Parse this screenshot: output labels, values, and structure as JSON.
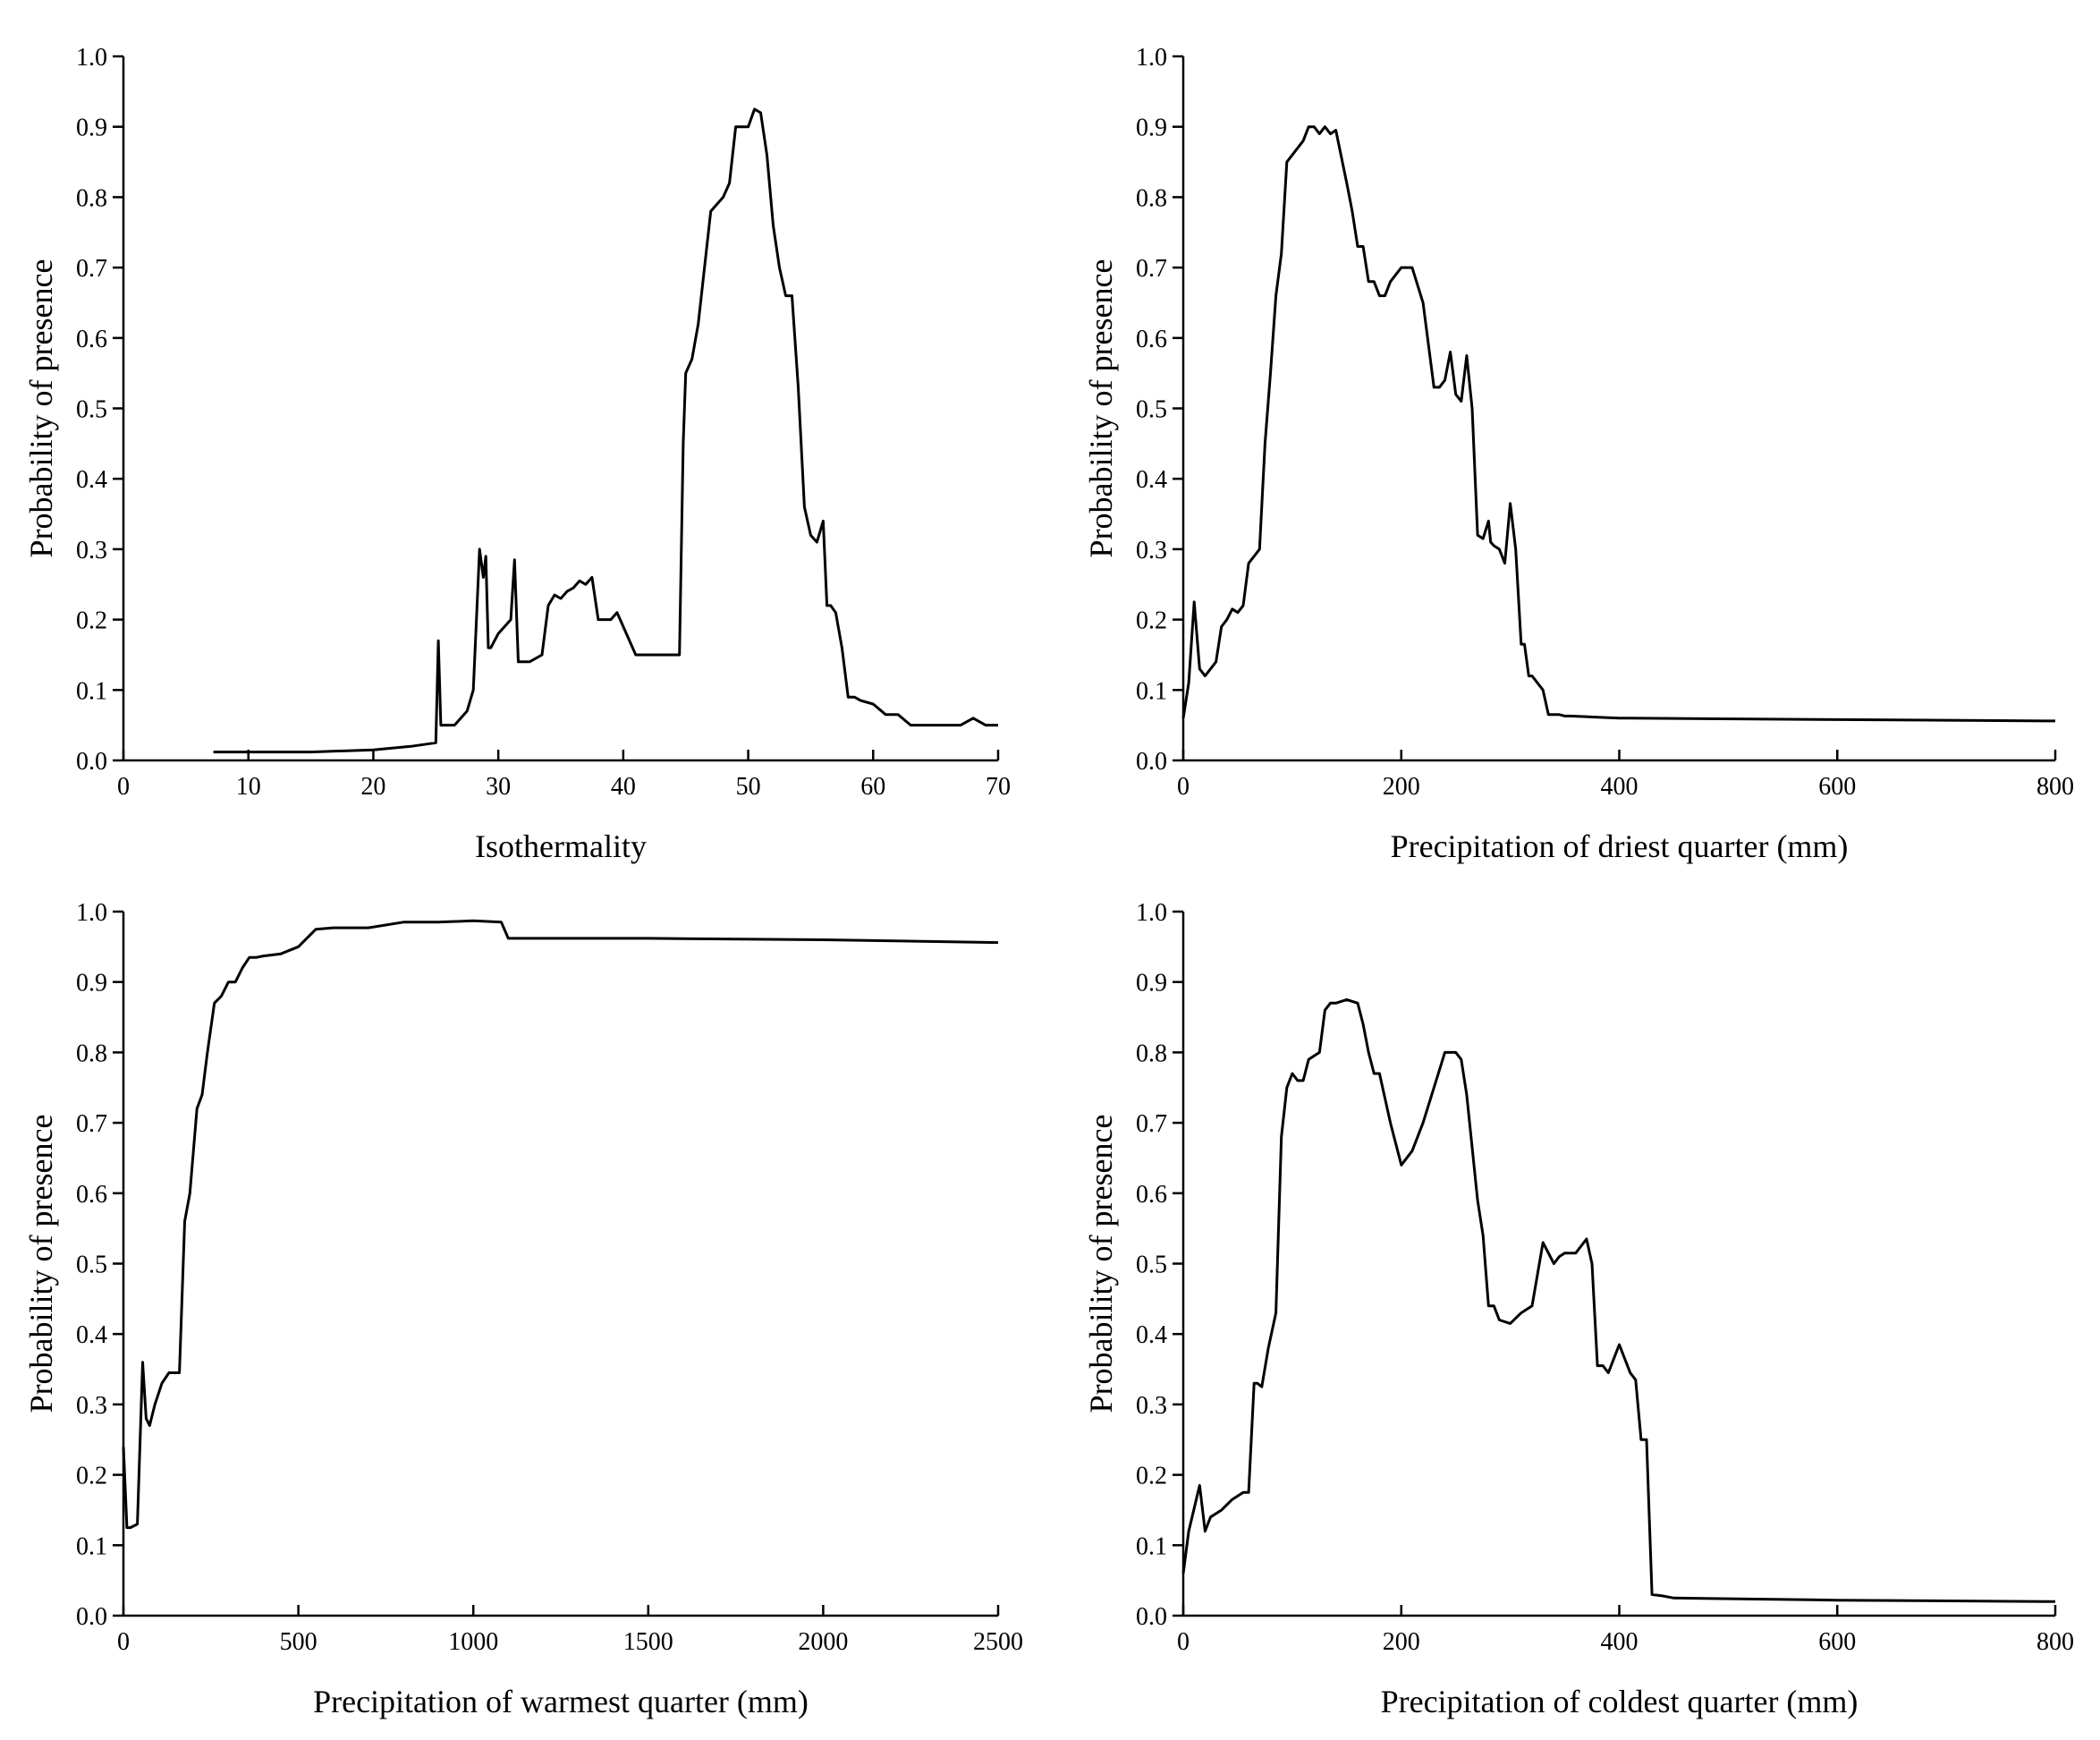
{
  "chart_data": [
    {
      "type": "line",
      "xlabel": "Isothermality",
      "ylabel": "Probability of presence",
      "xlim": [
        0,
        70
      ],
      "ylim": [
        0,
        1
      ],
      "xticks": [
        0,
        10,
        20,
        30,
        40,
        50,
        60,
        70
      ],
      "yticks": [
        0.0,
        0.1,
        0.2,
        0.3,
        0.4,
        0.5,
        0.6,
        0.7,
        0.8,
        0.9,
        1.0
      ],
      "grid": false,
      "legend": "none",
      "series": [
        {
          "x": [
            7.2,
            15,
            20,
            23,
            25,
            25.2,
            25.4,
            25.6,
            26.5,
            27.5,
            28,
            28.5,
            28.8,
            29,
            29.2,
            29.4,
            30,
            30.5,
            31,
            31.3,
            31.6,
            32,
            32.5,
            33.5,
            34,
            34.5,
            35,
            35.5,
            36,
            36.5,
            37,
            37.5,
            38,
            39,
            39.5,
            40,
            41,
            44.5,
            44.8,
            45,
            45.5,
            46,
            46.5,
            47,
            48,
            48.5,
            49,
            49.5,
            50,
            50.5,
            51,
            51.5,
            52,
            52.5,
            53,
            53.5,
            54,
            54.5,
            55,
            55.5,
            56,
            56.3,
            56.6,
            57,
            57.5,
            58,
            58.5,
            59,
            60,
            61,
            62,
            63,
            64,
            66,
            67,
            68,
            69,
            70
          ],
          "y": [
            0.012,
            0.012,
            0.015,
            0.02,
            0.025,
            0.17,
            0.05,
            0.05,
            0.05,
            0.07,
            0.1,
            0.3,
            0.26,
            0.29,
            0.16,
            0.16,
            0.18,
            0.19,
            0.2,
            0.285,
            0.14,
            0.14,
            0.14,
            0.15,
            0.22,
            0.235,
            0.23,
            0.24,
            0.245,
            0.255,
            0.25,
            0.26,
            0.2,
            0.2,
            0.21,
            0.19,
            0.15,
            0.15,
            0.45,
            0.55,
            0.57,
            0.62,
            0.7,
            0.78,
            0.8,
            0.82,
            0.9,
            0.9,
            0.9,
            0.925,
            0.92,
            0.86,
            0.76,
            0.7,
            0.66,
            0.66,
            0.53,
            0.36,
            0.32,
            0.31,
            0.34,
            0.22,
            0.22,
            0.21,
            0.16,
            0.09,
            0.09,
            0.085,
            0.08,
            0.065,
            0.065,
            0.05,
            0.05,
            0.05,
            0.05,
            0.06,
            0.05,
            0.05
          ]
        }
      ]
    },
    {
      "type": "line",
      "xlabel": "Precipitation of driest quarter (mm)",
      "ylabel": "Probability of presence",
      "xlim": [
        0,
        800
      ],
      "ylim": [
        0,
        1
      ],
      "xticks": [
        0,
        200,
        400,
        600,
        800
      ],
      "yticks": [
        0.0,
        0.1,
        0.2,
        0.3,
        0.4,
        0.5,
        0.6,
        0.7,
        0.8,
        0.9,
        1.0
      ],
      "grid": false,
      "legend": "none",
      "series": [
        {
          "x": [
            0,
            5,
            10,
            15,
            20,
            25,
            30,
            35,
            40,
            45,
            50,
            55,
            60,
            65,
            70,
            75,
            80,
            85,
            90,
            95,
            100,
            105,
            110,
            115,
            120,
            125,
            130,
            135,
            140,
            150,
            155,
            160,
            165,
            170,
            175,
            180,
            185,
            190,
            200,
            210,
            220,
            230,
            235,
            240,
            245,
            250,
            255,
            260,
            265,
            270,
            275,
            280,
            282,
            285,
            290,
            295,
            300,
            305,
            310,
            313,
            317,
            320,
            330,
            335,
            340,
            345,
            350,
            355,
            400,
            410,
            600,
            800
          ],
          "y": [
            0.06,
            0.11,
            0.225,
            0.13,
            0.12,
            0.13,
            0.14,
            0.19,
            0.2,
            0.215,
            0.21,
            0.22,
            0.28,
            0.29,
            0.3,
            0.45,
            0.55,
            0.66,
            0.72,
            0.85,
            0.86,
            0.87,
            0.88,
            0.9,
            0.9,
            0.89,
            0.9,
            0.89,
            0.895,
            0.82,
            0.78,
            0.73,
            0.73,
            0.68,
            0.68,
            0.66,
            0.66,
            0.68,
            0.7,
            0.7,
            0.65,
            0.53,
            0.53,
            0.54,
            0.58,
            0.52,
            0.51,
            0.575,
            0.5,
            0.32,
            0.315,
            0.34,
            0.31,
            0.305,
            0.3,
            0.28,
            0.365,
            0.3,
            0.165,
            0.165,
            0.12,
            0.12,
            0.1,
            0.065,
            0.065,
            0.065,
            0.063,
            0.063,
            0.06,
            0.06,
            0.058,
            0.056
          ]
        }
      ]
    },
    {
      "type": "line",
      "xlabel": "Precipitation of warmest quarter (mm)",
      "ylabel": "Probability of presence",
      "xlim": [
        0,
        2500
      ],
      "ylim": [
        0,
        1
      ],
      "xticks": [
        0,
        500,
        1000,
        1500,
        2000,
        2500
      ],
      "yticks": [
        0.0,
        0.1,
        0.2,
        0.3,
        0.4,
        0.5,
        0.6,
        0.7,
        0.8,
        0.9,
        1.0
      ],
      "grid": false,
      "legend": "none",
      "series": [
        {
          "x": [
            0,
            10,
            20,
            40,
            55,
            65,
            75,
            90,
            110,
            130,
            160,
            175,
            190,
            210,
            225,
            240,
            260,
            280,
            300,
            320,
            340,
            360,
            380,
            400,
            450,
            500,
            550,
            600,
            700,
            800,
            900,
            1000,
            1080,
            1100,
            1500,
            2000,
            2500
          ],
          "y": [
            0.24,
            0.125,
            0.125,
            0.13,
            0.36,
            0.28,
            0.27,
            0.3,
            0.33,
            0.345,
            0.345,
            0.56,
            0.6,
            0.72,
            0.74,
            0.8,
            0.87,
            0.88,
            0.9,
            0.9,
            0.92,
            0.935,
            0.935,
            0.937,
            0.94,
            0.95,
            0.975,
            0.977,
            0.977,
            0.985,
            0.985,
            0.987,
            0.985,
            0.962,
            0.962,
            0.96,
            0.956
          ]
        }
      ]
    },
    {
      "type": "line",
      "xlabel": "Precipitation of coldest quarter (mm)",
      "ylabel": "Probability of presence",
      "xlim": [
        0,
        800
      ],
      "ylim": [
        0,
        1
      ],
      "xticks": [
        0,
        200,
        400,
        600,
        800
      ],
      "yticks": [
        0.0,
        0.1,
        0.2,
        0.3,
        0.4,
        0.5,
        0.6,
        0.7,
        0.8,
        0.9,
        1.0
      ],
      "grid": false,
      "legend": "none",
      "series": [
        {
          "x": [
            0,
            5,
            15,
            20,
            25,
            35,
            45,
            55,
            60,
            65,
            68,
            72,
            78,
            85,
            90,
            95,
            100,
            105,
            110,
            115,
            120,
            125,
            130,
            135,
            140,
            150,
            160,
            165,
            170,
            175,
            180,
            190,
            200,
            210,
            220,
            230,
            240,
            250,
            255,
            260,
            270,
            275,
            280,
            285,
            290,
            300,
            310,
            320,
            330,
            340,
            345,
            350,
            360,
            370,
            375,
            380,
            385,
            390,
            400,
            410,
            415,
            420,
            425,
            430,
            440,
            450,
            600,
            800
          ],
          "y": [
            0.06,
            0.12,
            0.185,
            0.12,
            0.14,
            0.15,
            0.165,
            0.175,
            0.175,
            0.33,
            0.33,
            0.325,
            0.38,
            0.43,
            0.68,
            0.75,
            0.77,
            0.76,
            0.76,
            0.79,
            0.795,
            0.8,
            0.86,
            0.87,
            0.87,
            0.875,
            0.87,
            0.84,
            0.8,
            0.77,
            0.77,
            0.7,
            0.64,
            0.66,
            0.7,
            0.75,
            0.8,
            0.8,
            0.79,
            0.74,
            0.59,
            0.54,
            0.44,
            0.44,
            0.42,
            0.415,
            0.43,
            0.44,
            0.53,
            0.5,
            0.51,
            0.515,
            0.515,
            0.535,
            0.5,
            0.355,
            0.355,
            0.345,
            0.385,
            0.345,
            0.335,
            0.25,
            0.25,
            0.03,
            0.028,
            0.025,
            0.022,
            0.02
          ]
        }
      ]
    }
  ]
}
